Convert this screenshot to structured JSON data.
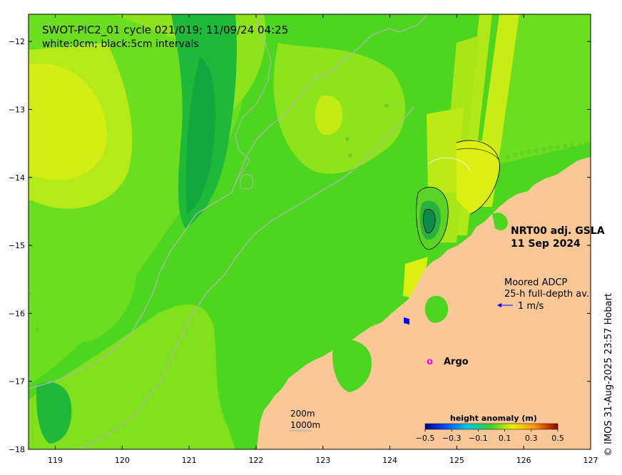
{
  "title": {
    "line1": "SWOT-PIC2_01 cycle 021/019; 11/09/24 04:25",
    "line2": "white:0cm; black:5cm intervals"
  },
  "product": {
    "line1": "NRT00 adj. GSLA",
    "line2": "11 Sep 2024"
  },
  "adcp": {
    "line1": "Moored ADCP",
    "line2": "25-h full-depth av.",
    "scale_label": "1 m/s"
  },
  "argo": {
    "marker": "o",
    "label": "Argo"
  },
  "isobaths": {
    "label1": "200m",
    "label2": "1000m"
  },
  "colorbar": {
    "title": "height anomaly (m)",
    "ticks": [
      "−0.5",
      "−0.3",
      "−0.1",
      "0.1",
      "0.3",
      "0.5"
    ]
  },
  "axes": {
    "x_ticks": [
      "119",
      "120",
      "121",
      "122",
      "123",
      "124",
      "125",
      "126",
      "127"
    ],
    "y_ticks": [
      "−12",
      "−13",
      "−14",
      "−15",
      "−16",
      "−17",
      "−18"
    ],
    "xlim": [
      118.6,
      127.0
    ],
    "ylim": [
      -18.0,
      -11.6
    ]
  },
  "credit": "© IMOS 31-Aug-2025 23:57 Hobart",
  "colors": {
    "ocean_base": "#4cd620",
    "land": "#fac896",
    "strong_green": "#1eb83a",
    "yellow_green": "#c8ec14",
    "yellow": "#e6f00a",
    "isobath": "#a8a8a8",
    "argo": "#ff00ff",
    "adcp_arrow": "#0000ff"
  }
}
